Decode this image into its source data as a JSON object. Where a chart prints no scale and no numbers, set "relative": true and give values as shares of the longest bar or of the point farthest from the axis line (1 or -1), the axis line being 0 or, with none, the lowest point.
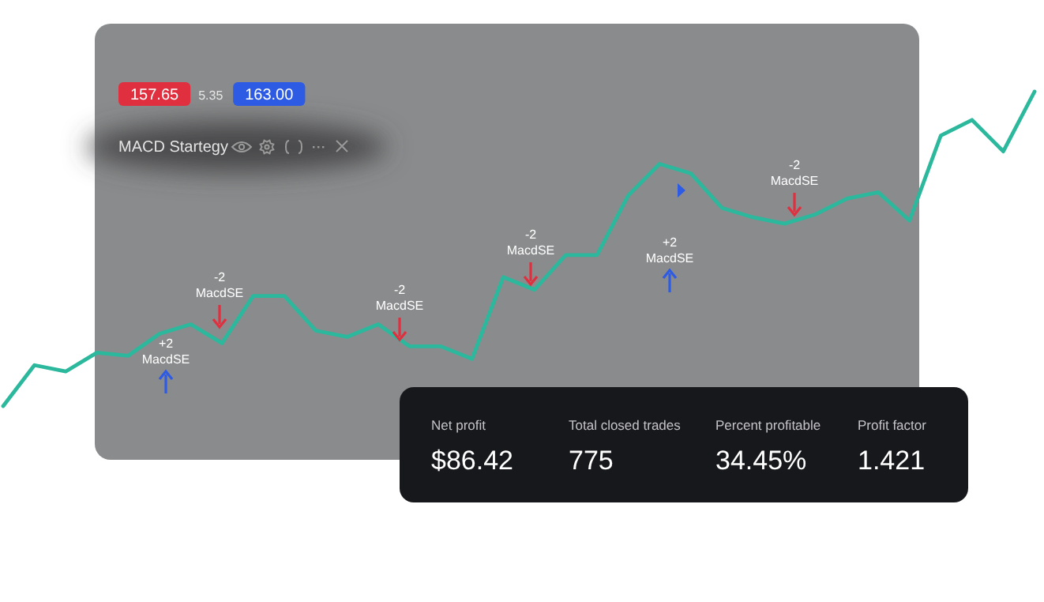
{
  "chart_data": {
    "type": "line",
    "relative": true,
    "tick_labels": false,
    "grid": false,
    "marker": "none",
    "line_style": "solid",
    "categories": [
      null,
      null,
      null,
      null,
      null,
      null,
      null,
      null,
      null,
      null,
      null,
      null,
      null,
      null,
      null,
      null,
      null,
      null,
      null,
      null,
      null,
      null,
      null,
      null,
      null,
      null,
      null,
      null,
      null,
      null,
      null,
      null,
      null,
      null
    ],
    "series": [
      {
        "color": "#2bb89c",
        "values": [
          0,
          0.13,
          0.11,
          0.17,
          0.16,
          0.23,
          0.26,
          0.2,
          0.35,
          0.35,
          0.24,
          0.22,
          0.26,
          0.19,
          0.19,
          0.15,
          0.41,
          0.37,
          0.48,
          0.48,
          0.67,
          0.77,
          0.74,
          0.63,
          0.6,
          0.58,
          0.61,
          0.66,
          0.68,
          0.59,
          0.86,
          0.91,
          0.81,
          1
        ]
      }
    ],
    "annotations": [
      "+2 MacdSE",
      "-2 MacdSE",
      "-2 MacdSE",
      "-2 MacdSE",
      "+2 MacdSE",
      "-2 MacdSE",
      "157.65",
      "5.35",
      "163.00",
      "MACD Startegy",
      "Net profit",
      "$86.42",
      "Total closed trades",
      "775",
      "Percent profitable",
      "34.45%",
      "Profit factor",
      "1.421"
    ]
  }
}
